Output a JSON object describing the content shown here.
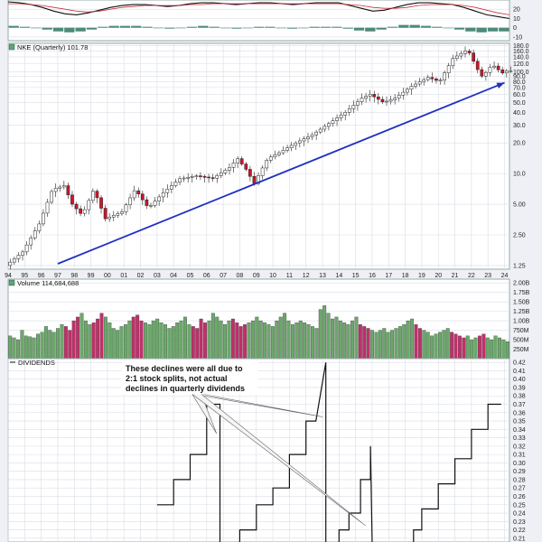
{
  "colors": {
    "up": "#2e8b3c",
    "down": "#d0142a",
    "vol_up": "#6aa86a",
    "vol_down": "#c0306a",
    "grid": "#d9dde6",
    "trend": "#2030c0",
    "dividend_line": "#111111",
    "macd_hist": "#4d8a7a",
    "osc_line1": "#111111",
    "osc_line2": "#c83040"
  },
  "chart_data": [
    {
      "panel": "oscillator",
      "type": "line",
      "y_tick_labels": [
        "20",
        "10",
        "0",
        "-10"
      ],
      "ylim": [
        -14,
        30
      ],
      "series": [
        {
          "values": [
            28,
            27,
            25,
            22,
            18,
            15,
            14,
            16,
            19,
            22,
            24,
            25,
            25,
            24,
            23,
            24,
            26,
            27,
            27,
            26,
            25,
            26,
            27,
            27,
            26,
            25,
            26,
            27,
            27,
            27,
            24,
            21,
            18,
            19,
            22,
            25,
            27,
            27,
            26,
            25,
            22,
            18,
            14,
            12,
            10
          ]
        },
        {
          "values": [
            26,
            26,
            25,
            24,
            22,
            20,
            18,
            17,
            18,
            20,
            22,
            23,
            24,
            24,
            24,
            24,
            25,
            25,
            26,
            26,
            26,
            26,
            26,
            26,
            26,
            26,
            26,
            26,
            26,
            26,
            25,
            24,
            22,
            21,
            21,
            22,
            24,
            25,
            25,
            25,
            24,
            22,
            19,
            16,
            14
          ]
        }
      ],
      "histogram": [
        2,
        1,
        0,
        -2,
        -4,
        -5,
        -4,
        -2,
        1,
        2,
        2,
        2,
        1,
        0,
        -1,
        0,
        1,
        2,
        1,
        0,
        -1,
        0,
        1,
        1,
        0,
        -1,
        0,
        1,
        1,
        1,
        -1,
        -3,
        -4,
        -2,
        1,
        3,
        3,
        2,
        1,
        0,
        -2,
        -4,
        -5,
        -4,
        -4
      ]
    },
    {
      "panel": "price",
      "type": "candlestick",
      "title": "NKE (Quarterly) 101.78",
      "y_scale": "log",
      "ylim": [
        1.15,
        190
      ],
      "y_tick_labels": [
        "180.0",
        "160.0",
        "140.0",
        "120.0",
        "100.0",
        "90.0",
        "80.0",
        "70.0",
        "60.0",
        "50.0",
        "40.0",
        "30.0",
        "20.0",
        "10.0",
        "5.00",
        "2.50",
        "1.25"
      ],
      "x_tick_labels": [
        "94",
        "95",
        "96",
        "97",
        "98",
        "99",
        "00",
        "01",
        "02",
        "03",
        "04",
        "05",
        "06",
        "07",
        "08",
        "09",
        "10",
        "11",
        "12",
        "13",
        "14",
        "15",
        "16",
        "17",
        "18",
        "19",
        "20",
        "21",
        "22",
        "23",
        "24"
      ],
      "x_range_years": [
        1994,
        2024.3
      ],
      "anchors": [
        [
          1994.0,
          1.25
        ],
        [
          1995.0,
          1.7
        ],
        [
          1996.0,
          3.2
        ],
        [
          1996.8,
          7.0
        ],
        [
          1997.5,
          7.6
        ],
        [
          1998.0,
          5.0
        ],
        [
          1998.6,
          3.9
        ],
        [
          1999.3,
          7.0
        ],
        [
          2000.0,
          3.6
        ],
        [
          2001.0,
          4.2
        ],
        [
          2001.8,
          7.0
        ],
        [
          2002.6,
          4.6
        ],
        [
          2003.5,
          6.5
        ],
        [
          2004.5,
          8.9
        ],
        [
          2005.5,
          9.5
        ],
        [
          2006.5,
          9.0
        ],
        [
          2007.5,
          11.5
        ],
        [
          2008.0,
          14.0
        ],
        [
          2008.5,
          11.0
        ],
        [
          2009.0,
          8.0
        ],
        [
          2009.8,
          14.0
        ],
        [
          2010.5,
          16.0
        ],
        [
          2011.5,
          20.0
        ],
        [
          2012.5,
          24.0
        ],
        [
          2013.5,
          31.0
        ],
        [
          2014.5,
          40.0
        ],
        [
          2015.5,
          55.0
        ],
        [
          2016.0,
          60.0
        ],
        [
          2016.8,
          50.0
        ],
        [
          2017.5,
          55.0
        ],
        [
          2018.5,
          72.0
        ],
        [
          2019.5,
          88.0
        ],
        [
          2020.2,
          80.0
        ],
        [
          2021.0,
          135.0
        ],
        [
          2021.9,
          165.0
        ],
        [
          2022.5,
          105.0
        ],
        [
          2022.8,
          88.0
        ],
        [
          2023.2,
          110.0
        ],
        [
          2023.6,
          115.0
        ],
        [
          2023.9,
          95.0
        ],
        [
          2024.2,
          101.78
        ]
      ],
      "trendline": [
        [
          1997.0,
          1.3
        ],
        [
          2024.0,
          78.0
        ]
      ]
    },
    {
      "panel": "volume",
      "type": "bar",
      "title": "Volume 114,684,688",
      "ylim": [
        0,
        2.1
      ],
      "y_tick_labels": [
        "2.00B",
        "1.75B",
        "1.50B",
        "1.25B",
        "1.00B",
        "750M",
        "500M",
        "250M"
      ],
      "y_tick_values": [
        2.0,
        1.75,
        1.5,
        1.25,
        1.0,
        0.75,
        0.5,
        0.25
      ],
      "values": [
        0.6,
        0.55,
        0.5,
        0.75,
        0.6,
        0.58,
        0.55,
        0.65,
        0.7,
        0.85,
        0.75,
        0.7,
        0.8,
        0.9,
        0.85,
        0.75,
        1.0,
        1.1,
        1.2,
        1.0,
        0.9,
        0.95,
        1.05,
        1.2,
        1.1,
        0.95,
        0.8,
        0.75,
        0.85,
        0.9,
        1.0,
        1.1,
        1.15,
        1.0,
        0.95,
        0.9,
        1.0,
        1.05,
        0.95,
        0.9,
        0.8,
        0.85,
        0.95,
        1.0,
        1.1,
        0.9,
        0.85,
        0.8,
        1.05,
        0.95,
        1.0,
        1.2,
        1.1,
        1.0,
        0.9,
        1.0,
        1.05,
        0.95,
        0.85,
        0.9,
        0.95,
        1.0,
        1.1,
        1.0,
        0.95,
        0.9,
        0.85,
        1.0,
        1.1,
        1.2,
        1.0,
        0.9,
        0.95,
        1.0,
        0.95,
        0.9,
        0.85,
        0.8,
        1.3,
        1.4,
        1.2,
        1.05,
        1.1,
        1.0,
        0.95,
        0.9,
        1.0,
        1.1,
        0.9,
        0.85,
        0.8,
        0.75,
        0.7,
        0.75,
        0.8,
        0.7,
        0.75,
        0.8,
        0.85,
        0.9,
        1.0,
        1.05,
        0.9,
        0.8,
        0.75,
        0.7,
        0.6,
        0.65,
        0.7,
        0.75,
        0.8,
        0.7,
        0.65,
        0.6,
        0.55,
        0.6,
        0.5,
        0.55,
        0.6,
        0.65,
        0.55,
        0.5,
        0.6,
        0.55,
        0.5,
        0.45
      ]
    },
    {
      "panel": "dividends",
      "type": "line",
      "title": "DIVIDENDS",
      "y_tick_labels": [
        "0.42",
        "0.41",
        "0.40",
        "0.39",
        "0.38",
        "0.37",
        "0.36",
        "0.35",
        "0.34",
        "0.33",
        "0.32",
        "0.31",
        "0.30",
        "0.29",
        "0.28",
        "0.27",
        "0.26",
        "0.25",
        "0.24",
        "0.23",
        "0.22",
        "0.21"
      ],
      "ylim": [
        0.2055,
        0.4245
      ],
      "segments": [
        [
          [
            2003.0,
            0.25
          ],
          [
            2004.0,
            0.25
          ],
          [
            2004.0,
            0.28
          ],
          [
            2005.0,
            0.28
          ],
          [
            2005.0,
            0.31
          ],
          [
            2006.0,
            0.31
          ],
          [
            2006.0,
            0.37
          ],
          [
            2006.8,
            0.37
          ],
          [
            2006.8,
            0.19
          ]
        ],
        [
          [
            2008.0,
            0.19
          ],
          [
            2008.0,
            0.22
          ],
          [
            2009.0,
            0.22
          ],
          [
            2009.0,
            0.25
          ],
          [
            2010.0,
            0.25
          ],
          [
            2010.0,
            0.27
          ],
          [
            2011.0,
            0.27
          ],
          [
            2011.0,
            0.31
          ],
          [
            2012.0,
            0.31
          ],
          [
            2012.0,
            0.35
          ],
          [
            2012.6,
            0.35
          ],
          [
            2013.2,
            0.42
          ],
          [
            2013.2,
            0.19
          ]
        ],
        [
          [
            2014.0,
            0.19
          ],
          [
            2014.0,
            0.22
          ],
          [
            2014.6,
            0.22
          ],
          [
            2014.6,
            0.24
          ],
          [
            2015.3,
            0.24
          ],
          [
            2015.3,
            0.28
          ],
          [
            2015.9,
            0.28
          ],
          [
            2015.9,
            0.32
          ],
          [
            2016.0,
            0.19
          ]
        ],
        [
          [
            2018.5,
            0.19
          ],
          [
            2018.5,
            0.22
          ],
          [
            2019.0,
            0.22
          ],
          [
            2019.0,
            0.245
          ],
          [
            2020.0,
            0.245
          ],
          [
            2020.0,
            0.275
          ],
          [
            2021.0,
            0.275
          ],
          [
            2021.0,
            0.305
          ],
          [
            2022.0,
            0.305
          ],
          [
            2022.0,
            0.34
          ],
          [
            2023.0,
            0.34
          ],
          [
            2023.0,
            0.37
          ],
          [
            2023.8,
            0.37
          ]
        ]
      ],
      "annotation": {
        "text_lines": [
          "These declines were all due to",
          "2:1 stock splits, not actual",
          "declines in quarterly dividends"
        ],
        "pointer_targets": [
          [
            2006.6,
            0.335
          ],
          [
            2013.0,
            0.355
          ],
          [
            2015.6,
            0.225
          ]
        ]
      }
    }
  ]
}
